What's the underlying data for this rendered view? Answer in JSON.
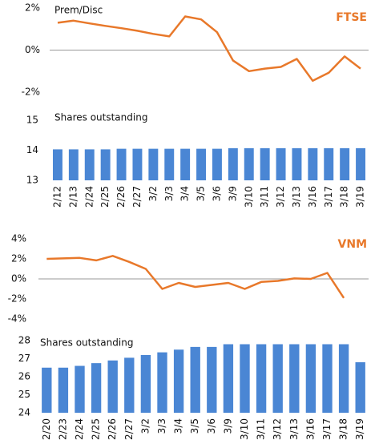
{
  "chart_data": [
    {
      "type": "line",
      "title": "FTSE",
      "ylabel": "Prem/Disc",
      "color": "#e8782a",
      "title_color": "#e8782a",
      "values": [
        1.3,
        1.4,
        1.27,
        1.15,
        1.04,
        0.92,
        0.77,
        0.65,
        1.6,
        1.46,
        0.85,
        -0.5,
        -1.0,
        -0.88,
        -0.8,
        -0.42,
        -1.46,
        -1.08,
        -0.3,
        -0.88
      ],
      "ylim": [
        -2,
        2
      ],
      "yticks": [
        {
          "value": 2,
          "label": "2%"
        },
        {
          "value": 0,
          "label": "0%"
        },
        {
          "value": -2,
          "label": "-2%"
        }
      ]
    },
    {
      "type": "bar",
      "title": "Shares outstanding",
      "color": "#4a86d4",
      "categories": [
        "2/12",
        "2/13",
        "2/24",
        "2/25",
        "2/26",
        "2/27",
        "3/2",
        "3/3",
        "3/4",
        "3/5",
        "3/6",
        "3/9",
        "3/10",
        "3/11",
        "3/12",
        "3/13",
        "3/16",
        "3/17",
        "3/18",
        "3/19"
      ],
      "values": [
        14.03,
        14.03,
        14.03,
        14.03,
        14.05,
        14.05,
        14.05,
        14.05,
        14.05,
        14.05,
        14.05,
        14.07,
        14.07,
        14.07,
        14.07,
        14.07,
        14.07,
        14.07,
        14.07,
        14.07
      ],
      "ylim": [
        13,
        15
      ],
      "yticks": [
        15,
        14,
        13
      ]
    },
    {
      "type": "line",
      "title": "VNM",
      "color": "#e8782a",
      "title_color": "#e8782a",
      "values": [
        2.0,
        2.05,
        2.1,
        1.85,
        2.3,
        1.7,
        1.0,
        -1.0,
        -0.4,
        -0.8,
        -0.6,
        -0.4,
        -1.0,
        -0.3,
        -0.2,
        0.05,
        0.0,
        0.6,
        -1.9,
        null
      ],
      "ylim": [
        -4,
        4
      ],
      "yticks": [
        {
          "value": 4,
          "label": "4%"
        },
        {
          "value": 2,
          "label": "2%"
        },
        {
          "value": 0,
          "label": "0%"
        },
        {
          "value": -2,
          "label": "-2%"
        },
        {
          "value": -4,
          "label": "-4%"
        }
      ]
    },
    {
      "type": "bar",
      "title": "Shares outstanding",
      "color": "#4a86d4",
      "categories": [
        "2/20",
        "2/23",
        "2/24",
        "2/25",
        "2/26",
        "2/27",
        "3/2",
        "3/3",
        "3/4",
        "3/5",
        "3/6",
        "3/9",
        "3/10",
        "3/11",
        "3/12",
        "3/13",
        "3/16",
        "3/17",
        "3/18",
        "3/19"
      ],
      "values": [
        26.5,
        26.5,
        26.6,
        26.75,
        26.9,
        27.05,
        27.2,
        27.35,
        27.5,
        27.65,
        27.65,
        27.8,
        27.8,
        27.8,
        27.8,
        27.8,
        27.8,
        27.8,
        27.8,
        26.8
      ],
      "ylim": [
        24,
        28
      ],
      "yticks": [
        28,
        27,
        26,
        25,
        24
      ]
    }
  ]
}
